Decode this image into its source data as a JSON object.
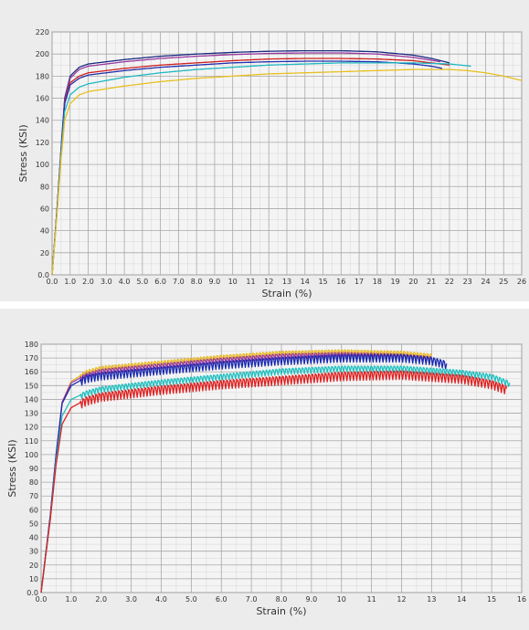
{
  "chart_data": [
    {
      "type": "line",
      "xlabel": "Strain (%)",
      "ylabel": "Stress (KSI)",
      "xlim": [
        0,
        26
      ],
      "ylim": [
        0,
        220
      ],
      "xticks": [
        "0.0",
        "1.0",
        "2.0",
        "3.0",
        "4.0",
        "5.0",
        "6.0",
        "7.0",
        "8.0",
        "9.0",
        "10",
        "11",
        "12",
        "13",
        "14",
        "15",
        "16",
        "17",
        "18",
        "19",
        "20",
        "21",
        "22",
        "23",
        "24",
        "25",
        "26"
      ],
      "yticks": [
        "0.0",
        "20",
        "40",
        "60",
        "80",
        "100",
        "120",
        "140",
        "160",
        "180",
        "200",
        "220"
      ],
      "grid": true,
      "series": [
        {
          "color": "#1a2a80",
          "points": [
            [
              0,
              0
            ],
            [
              0.3,
              65
            ],
            [
              0.5,
              115
            ],
            [
              0.7,
              160
            ],
            [
              1.0,
              180
            ],
            [
              1.5,
              188
            ],
            [
              2,
              191
            ],
            [
              4,
              195
            ],
            [
              6,
              198
            ],
            [
              8,
              200
            ],
            [
              10,
              201.5
            ],
            [
              12,
              202.5
            ],
            [
              14,
              203
            ],
            [
              16,
              203
            ],
            [
              18,
              202
            ],
            [
              20,
              199
            ],
            [
              21,
              196
            ],
            [
              22,
              192
            ]
          ]
        },
        {
          "color": "#9a3aa0",
          "points": [
            [
              0,
              0
            ],
            [
              0.3,
              65
            ],
            [
              0.5,
              115
            ],
            [
              0.7,
              158
            ],
            [
              1.0,
              178
            ],
            [
              1.5,
              186
            ],
            [
              2,
              189
            ],
            [
              4,
              193
            ],
            [
              6,
              196
            ],
            [
              8,
              198
            ],
            [
              10,
              199.5
            ],
            [
              12,
              200.5
            ],
            [
              14,
              201
            ],
            [
              16,
              201
            ],
            [
              18,
              200
            ],
            [
              20,
              197
            ],
            [
              21.5,
              193
            ]
          ]
        },
        {
          "color": "#d02020",
          "points": [
            [
              0,
              0
            ],
            [
              0.3,
              64
            ],
            [
              0.5,
              113
            ],
            [
              0.7,
              156
            ],
            [
              1.0,
              174
            ],
            [
              1.5,
              180
            ],
            [
              2,
              183
            ],
            [
              4,
              187
            ],
            [
              6,
              190
            ],
            [
              8,
              192
            ],
            [
              10,
              194
            ],
            [
              12,
              195.5
            ],
            [
              14,
              196
            ],
            [
              16,
              196
            ],
            [
              18,
              195.5
            ],
            [
              20,
              194
            ],
            [
              21,
              192
            ],
            [
              22,
              190
            ]
          ]
        },
        {
          "color": "#2030b0",
          "points": [
            [
              0,
              0
            ],
            [
              0.3,
              64
            ],
            [
              0.5,
              113
            ],
            [
              0.7,
              155
            ],
            [
              1.0,
              172
            ],
            [
              1.5,
              178
            ],
            [
              2,
              181
            ],
            [
              4,
              185
            ],
            [
              6,
              188
            ],
            [
              8,
              190
            ],
            [
              10,
              192
            ],
            [
              12,
              193
            ],
            [
              14,
              193.5
            ],
            [
              16,
              193.5
            ],
            [
              18,
              193
            ],
            [
              20,
              191
            ],
            [
              21,
              189
            ],
            [
              21.6,
              187
            ]
          ]
        },
        {
          "color": "#20b8c0",
          "points": [
            [
              0,
              0
            ],
            [
              0.3,
              62
            ],
            [
              0.5,
              110
            ],
            [
              0.7,
              148
            ],
            [
              1.0,
              163
            ],
            [
              1.5,
              170
            ],
            [
              2,
              173
            ],
            [
              4,
              179
            ],
            [
              6,
              183
            ],
            [
              8,
              186
            ],
            [
              10,
              188
            ],
            [
              12,
              190
            ],
            [
              14,
              191
            ],
            [
              16,
              192
            ],
            [
              18,
              192
            ],
            [
              20,
              192
            ],
            [
              22,
              191
            ],
            [
              23.2,
              189
            ]
          ]
        },
        {
          "color": "#e8c020",
          "points": [
            [
              0,
              0
            ],
            [
              0.3,
              60
            ],
            [
              0.5,
              105
            ],
            [
              0.7,
              140
            ],
            [
              1.0,
              155
            ],
            [
              1.5,
              163
            ],
            [
              2,
              166
            ],
            [
              4,
              171
            ],
            [
              6,
              175
            ],
            [
              8,
              178
            ],
            [
              10,
              180
            ],
            [
              12,
              182
            ],
            [
              14,
              183
            ],
            [
              16,
              184
            ],
            [
              18,
              185
            ],
            [
              20,
              186
            ],
            [
              22,
              186
            ],
            [
              23,
              185
            ],
            [
              24,
              183
            ],
            [
              25,
              180
            ],
            [
              26,
              176
            ]
          ]
        }
      ]
    },
    {
      "type": "line",
      "xlabel": "Strain (%)",
      "ylabel": "Stress (KSI)",
      "xlim": [
        0,
        16
      ],
      "ylim": [
        0,
        180
      ],
      "xticks": [
        "0.0",
        "1.0",
        "2.0",
        "3.0",
        "4.0",
        "5.0",
        "6.0",
        "7.0",
        "8.0",
        "9.0",
        "10",
        "11",
        "12",
        "13",
        "14",
        "15",
        "16"
      ],
      "yticks": [
        "0.0",
        "10",
        "20",
        "30",
        "40",
        "50",
        "60",
        "70",
        "80",
        "90",
        "100",
        "110",
        "120",
        "130",
        "140",
        "150",
        "160",
        "170",
        "180"
      ],
      "grid": true,
      "series": [
        {
          "color": "#e8b820",
          "points": [
            [
              0,
              0
            ],
            [
              0.3,
              55
            ],
            [
              0.5,
              100
            ],
            [
              0.7,
              138
            ],
            [
              1.0,
              153
            ],
            [
              1.5,
              160
            ],
            [
              2,
              163
            ],
            [
              4,
              167
            ],
            [
              6,
              171
            ],
            [
              8,
              174
            ],
            [
              10,
              175
            ],
            [
              12,
              174
            ],
            [
              13,
              172
            ]
          ],
          "serration": 2.5
        },
        {
          "color": "#9a3aa0",
          "points": [
            [
              0,
              0
            ],
            [
              0.3,
              55
            ],
            [
              0.5,
              100
            ],
            [
              0.7,
              138
            ],
            [
              1.0,
              152
            ],
            [
              1.5,
              158
            ],
            [
              2,
              161
            ],
            [
              4,
              165
            ],
            [
              6,
              169
            ],
            [
              8,
              172
            ],
            [
              10,
              173
            ],
            [
              12,
              172
            ],
            [
              13,
              170
            ]
          ],
          "serration": 2.5
        },
        {
          "color": "#1a2ab0",
          "points": [
            [
              0,
              0
            ],
            [
              0.3,
              55
            ],
            [
              0.5,
              100
            ],
            [
              0.7,
              137
            ],
            [
              1.0,
              150
            ],
            [
              1.5,
              156
            ],
            [
              2,
              158
            ],
            [
              4,
              162
            ],
            [
              6,
              166
            ],
            [
              8,
              169
            ],
            [
              10,
              171
            ],
            [
              12,
              171
            ],
            [
              13,
              169
            ],
            [
              13.5,
              166
            ]
          ],
          "serration": 4
        },
        {
          "color": "#20c0c0",
          "points": [
            [
              0,
              0
            ],
            [
              0.3,
              53
            ],
            [
              0.5,
              96
            ],
            [
              0.7,
              128
            ],
            [
              1.0,
              140
            ],
            [
              1.5,
              145
            ],
            [
              2,
              148
            ],
            [
              4,
              153
            ],
            [
              6,
              157
            ],
            [
              8,
              161
            ],
            [
              10,
              163
            ],
            [
              12,
              163
            ],
            [
              14,
              160
            ],
            [
              15,
              157
            ],
            [
              15.6,
              152
            ]
          ],
          "serration": 3
        },
        {
          "color": "#e02020",
          "points": [
            [
              0,
              0
            ],
            [
              0.3,
              52
            ],
            [
              0.5,
              93
            ],
            [
              0.7,
              122
            ],
            [
              1.0,
              134
            ],
            [
              1.5,
              140
            ],
            [
              2,
              143
            ],
            [
              4,
              148
            ],
            [
              6,
              152
            ],
            [
              8,
              155
            ],
            [
              10,
              158
            ],
            [
              12,
              159
            ],
            [
              14,
              156
            ],
            [
              15,
              152
            ],
            [
              15.5,
              148
            ]
          ],
          "serration": 4.5
        }
      ]
    }
  ]
}
